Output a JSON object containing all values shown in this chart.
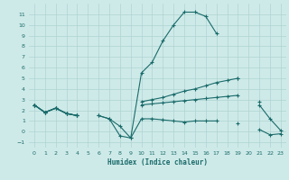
{
  "xlabel": "Humidex (Indice chaleur)",
  "background_color": "#ceeae8",
  "grid_color": "#aed4d2",
  "line_color": "#1a6b6b",
  "xlim": [
    -0.5,
    23.5
  ],
  "ylim": [
    -1.5,
    12.0
  ],
  "xticks": [
    0,
    1,
    2,
    3,
    4,
    5,
    6,
    7,
    8,
    9,
    10,
    11,
    12,
    13,
    14,
    15,
    16,
    17,
    18,
    19,
    20,
    21,
    22,
    23
  ],
  "yticks": [
    -1,
    0,
    1,
    2,
    3,
    4,
    5,
    6,
    7,
    8,
    9,
    10,
    11
  ],
  "series": [
    [
      2.5,
      1.8,
      2.2,
      1.7,
      1.5,
      null,
      1.5,
      1.2,
      -0.4,
      -0.6,
      5.5,
      6.5,
      8.5,
      10.0,
      11.2,
      11.2,
      10.8,
      9.2,
      null,
      5.0,
      null,
      2.5,
      1.2,
      0.1
    ],
    [
      2.5,
      1.8,
      2.2,
      1.7,
      1.5,
      null,
      null,
      null,
      null,
      null,
      2.8,
      3.0,
      3.2,
      3.5,
      3.8,
      4.0,
      4.3,
      4.6,
      4.8,
      5.0,
      null,
      2.8,
      null,
      null
    ],
    [
      2.5,
      1.8,
      2.2,
      1.7,
      1.5,
      null,
      null,
      null,
      null,
      null,
      2.5,
      2.6,
      2.7,
      2.8,
      2.9,
      3.0,
      3.1,
      3.2,
      3.3,
      3.4,
      null,
      null,
      null,
      null
    ],
    [
      2.5,
      1.8,
      2.2,
      1.7,
      1.5,
      null,
      1.5,
      1.2,
      0.5,
      -0.6,
      1.2,
      1.2,
      1.1,
      1.0,
      0.9,
      1.0,
      1.0,
      1.0,
      null,
      0.8,
      null,
      0.2,
      -0.3,
      -0.2
    ]
  ]
}
